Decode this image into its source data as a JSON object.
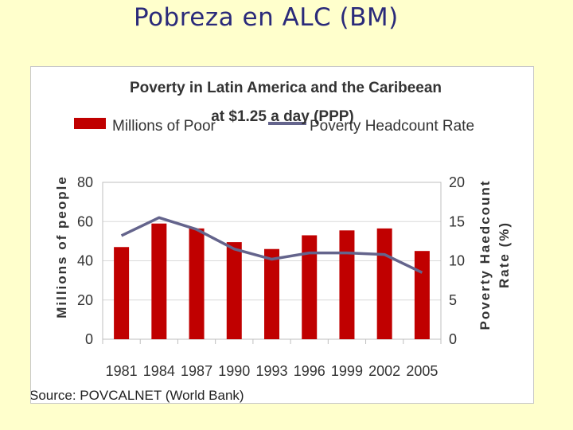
{
  "slide": {
    "title": "Pobreza en ALC (BM)"
  },
  "chart_data": {
    "type": "bar+line",
    "title_line1": "Poverty in Latin America and the Caribeean",
    "title_line2": "at $1.25 a day (PPP)",
    "categories": [
      "1981",
      "1984",
      "1987",
      "1990",
      "1993",
      "1996",
      "1999",
      "2002",
      "2005"
    ],
    "series": [
      {
        "name": "Millions of Poor",
        "type": "bar",
        "axis": "left",
        "color": "#c00000",
        "values": [
          47,
          59,
          56.5,
          49.5,
          46,
          53,
          55.5,
          56.5,
          45
        ]
      },
      {
        "name": "Poverty Headcount Rate",
        "type": "line",
        "axis": "right",
        "color": "#64648c",
        "values": [
          13.2,
          15.5,
          14,
          11.5,
          10.2,
          11,
          11,
          10.8,
          8.5
        ]
      }
    ],
    "y_left": {
      "label": "Millions of people",
      "min": 0,
      "max": 80,
      "ticks": [
        "0",
        "20",
        "40",
        "60",
        "80"
      ]
    },
    "y_right": {
      "label_line1": "Poverty Haedcount",
      "label_line2": "Rate (%)",
      "min": 0,
      "max": 20,
      "ticks": [
        "0",
        "5",
        "10",
        "15",
        "20"
      ]
    },
    "source": "Source: POVCALNET (World Bank)"
  }
}
